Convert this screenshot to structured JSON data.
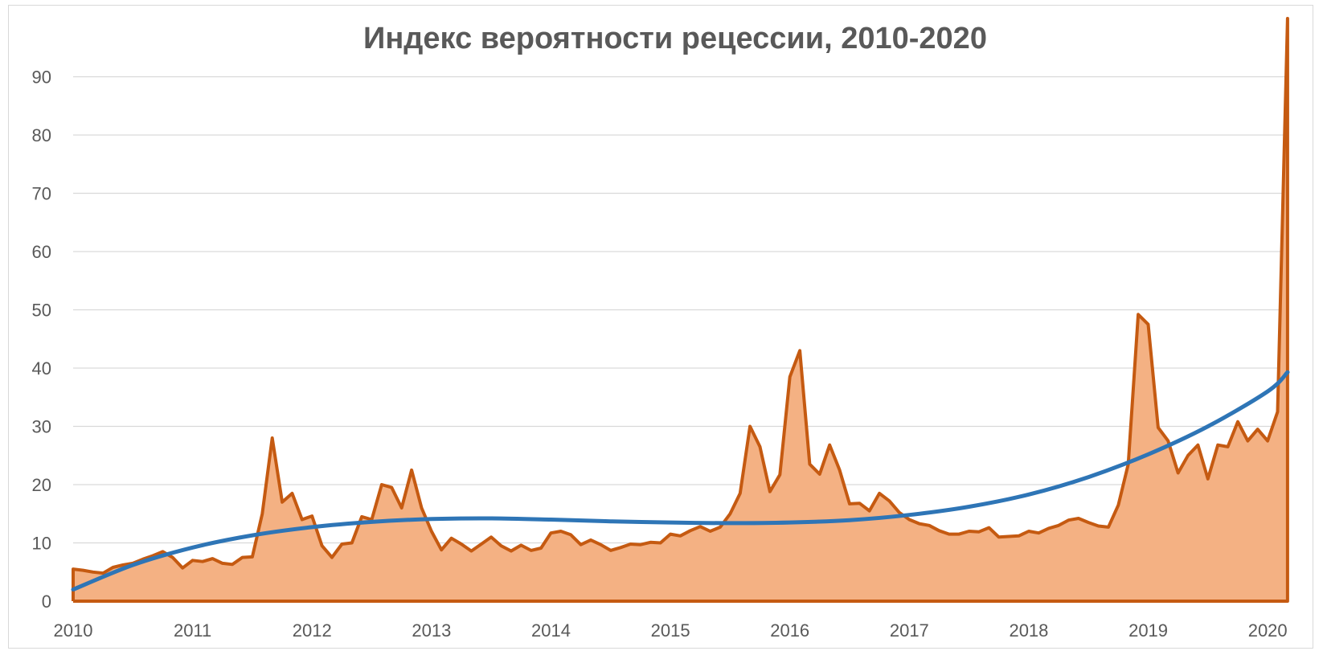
{
  "chart_data": {
    "type": "area",
    "title": "Индекс вероятности рецессии, 2010-2020",
    "xlabel": "",
    "ylabel": "",
    "xlim": [
      2010,
      2020.167
    ],
    "ylim": [
      0,
      100
    ],
    "x_ticks": [
      "2010",
      "2011",
      "2012",
      "2013",
      "2014",
      "2015",
      "2016",
      "2017",
      "2018",
      "2019",
      "2020"
    ],
    "y_ticks": [
      "0",
      "10",
      "20",
      "30",
      "40",
      "50",
      "60",
      "70",
      "80",
      "90"
    ],
    "grid": true,
    "legend": "none",
    "colors": {
      "area_fill": "#f4b183",
      "area_line": "#c55a11",
      "trend": "#2e75b6",
      "grid": "#d9d9d9",
      "text": "#595959"
    },
    "series": [
      {
        "kind": "area",
        "x_start": 2010.0,
        "x_step": 0.08333,
        "values": [
          5.5,
          5.3,
          5.0,
          4.8,
          5.8,
          6.2,
          6.5,
          7.2,
          7.8,
          8.5,
          7.5,
          5.7,
          7.0,
          6.8,
          7.3,
          6.5,
          6.3,
          7.5,
          7.6,
          15.0,
          28.0,
          17.0,
          18.5,
          14.0,
          14.6,
          9.5,
          7.5,
          9.8,
          10.0,
          14.5,
          14.0,
          20.0,
          19.5,
          16.0,
          22.5,
          16.0,
          12.0,
          8.8,
          10.8,
          9.8,
          8.6,
          9.8,
          11.0,
          9.5,
          8.6,
          9.6,
          8.7,
          9.1,
          11.7,
          12.0,
          11.4,
          9.7,
          10.5,
          9.7,
          8.7,
          9.2,
          9.8,
          9.7,
          10.1,
          10.0,
          11.5,
          11.2,
          12.1,
          12.8,
          12.0,
          12.7,
          15.0,
          18.5,
          30.0,
          26.5,
          18.8,
          21.7,
          38.5,
          43.0,
          23.5,
          21.8,
          26.8,
          22.5,
          16.7,
          16.8,
          15.5,
          18.5,
          17.2,
          15.2,
          14.0,
          13.3,
          13.0,
          12.1,
          11.5,
          11.5,
          12.0,
          11.9,
          12.6,
          11.0,
          11.1,
          11.2,
          12.0,
          11.7,
          12.5,
          13.0,
          13.9,
          14.2,
          13.5,
          12.9,
          12.7,
          16.5,
          23.5,
          49.2,
          47.5,
          29.8,
          27.5,
          22.0,
          25.0,
          26.8,
          21.0,
          26.8,
          26.5,
          30.8,
          27.5,
          29.5,
          27.5,
          32.5,
          100.0
        ]
      },
      {
        "kind": "line",
        "name": "",
        "x": [
          2010.0,
          2010.5,
          2011.0,
          2011.5,
          2012.0,
          2012.5,
          2013.0,
          2013.5,
          2014.0,
          2014.5,
          2015.0,
          2015.5,
          2016.0,
          2016.5,
          2017.0,
          2017.5,
          2018.0,
          2018.5,
          2019.0,
          2019.5,
          2020.0,
          2020.167
        ],
        "values": [
          2.0,
          6.2,
          9.2,
          11.3,
          12.7,
          13.6,
          14.1,
          14.2,
          14.0,
          13.7,
          13.5,
          13.4,
          13.5,
          13.9,
          14.8,
          16.2,
          18.3,
          21.3,
          25.2,
          30.0,
          36.0,
          39.3
        ]
      }
    ]
  }
}
